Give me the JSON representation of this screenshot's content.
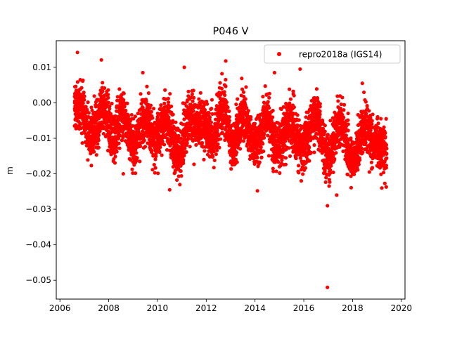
{
  "chart_data": {
    "type": "scatter",
    "title": "P046 V",
    "xlabel": "",
    "ylabel": "m",
    "xlim": [
      2005.85,
      2020.15
    ],
    "ylim": [
      -0.0553,
      0.0175
    ],
    "xticks": [
      2006,
      2008,
      2010,
      2012,
      2014,
      2016,
      2018,
      2020
    ],
    "yticks": [
      0.01,
      0.0,
      -0.01,
      -0.02,
      -0.03,
      -0.04,
      -0.05
    ],
    "ytick_labels": [
      "0.01",
      "0.00",
      "−0.01",
      "−0.02",
      "−0.03",
      "−0.04",
      "−0.05"
    ],
    "grid": false,
    "legend_position": "top-right",
    "series": [
      {
        "name": "repro2018a (IGS14)",
        "color": "#ff0000",
        "marker": "circle",
        "time_range": [
          2006.6,
          2019.4
        ],
        "seasonal_trend": [
          [
            2006.6,
            -0.002
          ],
          [
            2006.9,
            -0.001
          ],
          [
            2007.2,
            -0.009
          ],
          [
            2007.5,
            -0.006
          ],
          [
            2007.8,
            -0.001
          ],
          [
            2008.2,
            -0.01
          ],
          [
            2008.6,
            -0.003
          ],
          [
            2009.0,
            -0.012
          ],
          [
            2009.5,
            -0.004
          ],
          [
            2009.9,
            -0.011
          ],
          [
            2010.3,
            -0.005
          ],
          [
            2010.9,
            -0.015
          ],
          [
            2011.3,
            -0.004
          ],
          [
            2011.9,
            -0.006
          ],
          [
            2012.3,
            -0.01
          ],
          [
            2012.7,
            -0.001
          ],
          [
            2013.1,
            -0.012
          ],
          [
            2013.5,
            -0.004
          ],
          [
            2014.0,
            -0.012
          ],
          [
            2014.5,
            -0.004
          ],
          [
            2014.9,
            -0.013
          ],
          [
            2015.4,
            -0.005
          ],
          [
            2015.9,
            -0.013
          ],
          [
            2016.5,
            -0.004
          ],
          [
            2017.0,
            -0.016
          ],
          [
            2017.5,
            -0.006
          ],
          [
            2018.0,
            -0.016
          ],
          [
            2018.5,
            -0.007
          ],
          [
            2019.0,
            -0.012
          ],
          [
            2019.4,
            -0.014
          ]
        ],
        "sample_points": [
          [
            2006.72,
            0.0142
          ],
          [
            2007.7,
            0.0121
          ],
          [
            2012.8,
            0.0118
          ],
          [
            2015.85,
            0.0095
          ],
          [
            2016.97,
            -0.029
          ],
          [
            2016.97,
            -0.052
          ],
          [
            2017.35,
            -0.026
          ],
          [
            2010.5,
            -0.0245
          ],
          [
            2008.6,
            -0.02
          ],
          [
            2014.1,
            -0.0248
          ],
          [
            2019.2,
            -0.024
          ],
          [
            2019.38,
            -0.0237
          ],
          [
            2009.4,
            0.0085
          ],
          [
            2011.1,
            0.01
          ],
          [
            2014.8,
            0.0085
          ],
          [
            2018.4,
            0.0055
          ]
        ]
      }
    ]
  }
}
